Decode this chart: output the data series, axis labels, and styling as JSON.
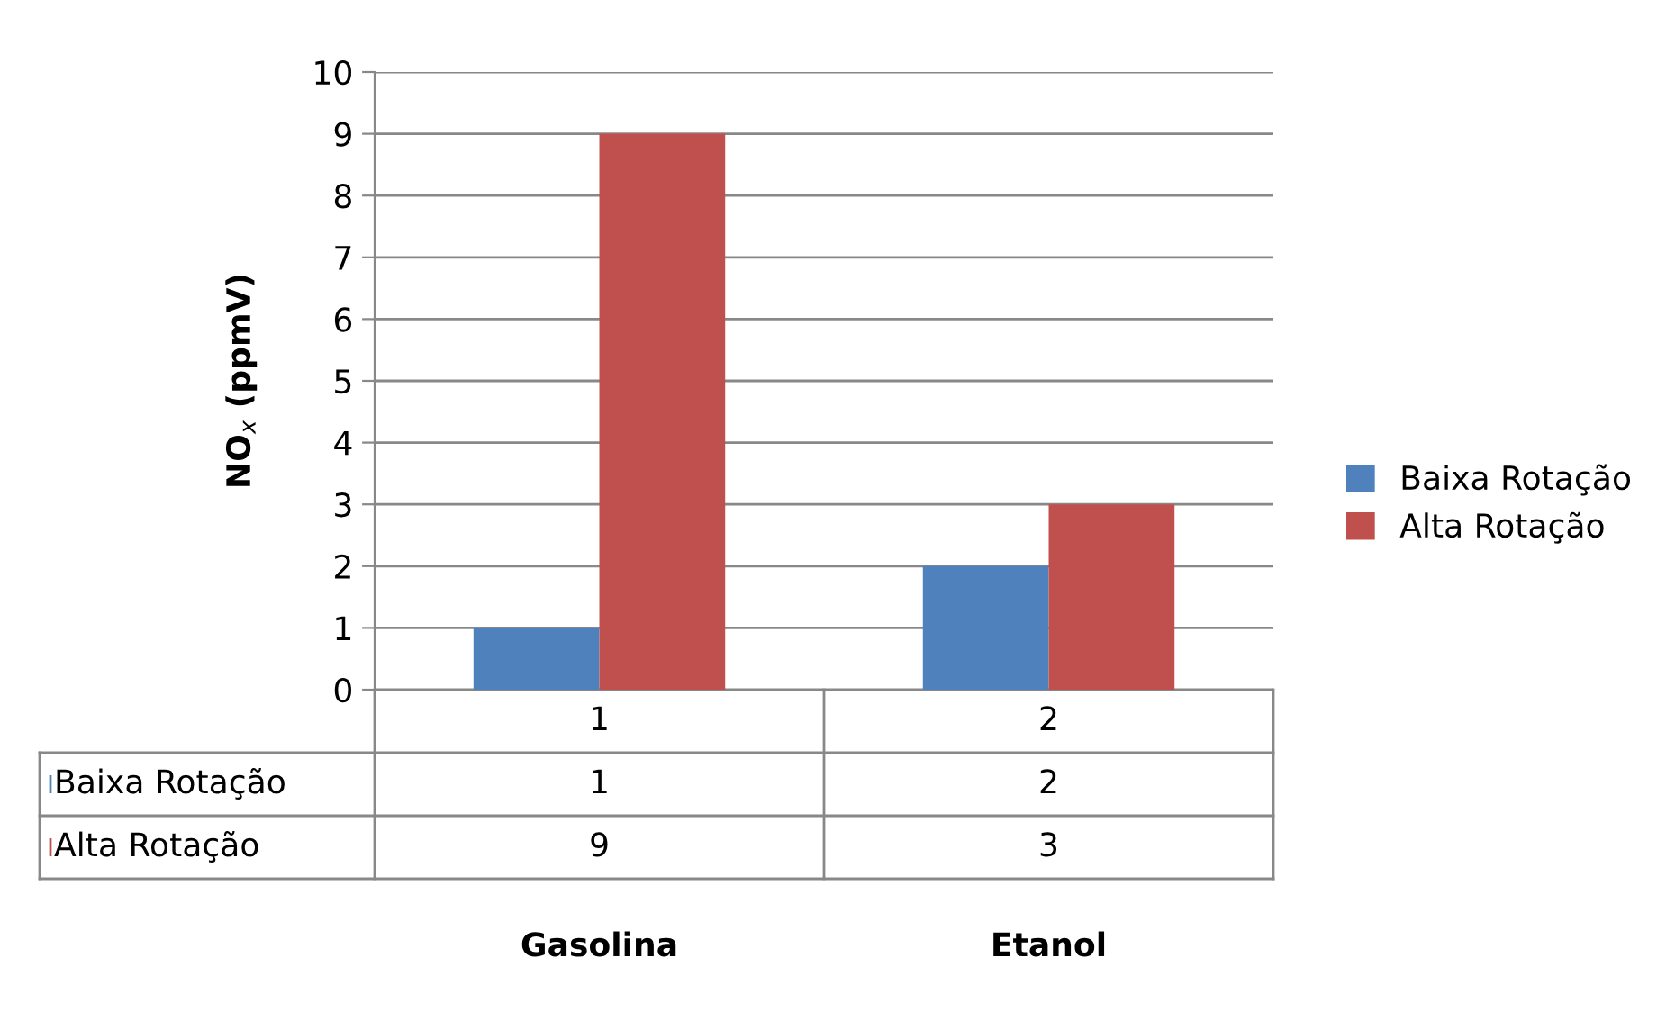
{
  "chart_data": {
    "type": "bar",
    "ylabel": "NO$_{x}$ (ppmV)",
    "categories": [
      "1",
      "2"
    ],
    "series": [
      {
        "name": "Baixa Rotação",
        "color": "#4f81bd",
        "values": [
          1,
          2
        ]
      },
      {
        "name": "Alta Rotação",
        "color": "#c0504d",
        "values": [
          9,
          3
        ]
      }
    ],
    "ylim": [
      0,
      10
    ],
    "yticks": [
      0,
      1,
      2,
      3,
      4,
      5,
      6,
      7,
      8,
      9,
      10
    ],
    "grid": "y",
    "legend": "right",
    "data_labels": true,
    "annotations": [
      "Gasolina",
      "Etanol"
    ]
  }
}
